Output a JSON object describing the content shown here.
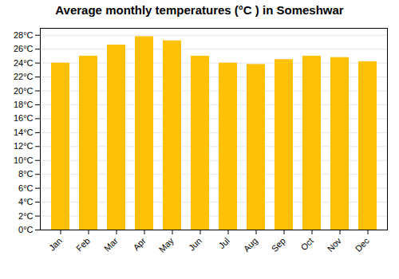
{
  "chart_data": {
    "type": "bar",
    "title": "Average monthly temperatures (°C ) in Someshwar",
    "categories": [
      "Jan",
      "Feb",
      "Mar",
      "Apr",
      "May",
      "Jun",
      "Jul",
      "Aug",
      "Sep",
      "Oct",
      "Nov",
      "Dec"
    ],
    "values": [
      24.0,
      25.0,
      26.6,
      27.8,
      27.2,
      25.0,
      24.0,
      23.8,
      24.5,
      25.0,
      24.8,
      24.2
    ],
    "color": "#FFC107",
    "ylim": [
      0,
      29
    ],
    "yticks": [
      {
        "value": 0,
        "label": "0°C"
      },
      {
        "value": 2,
        "label": "2°C"
      },
      {
        "value": 4,
        "label": "4°C"
      },
      {
        "value": 6,
        "label": "6°C"
      },
      {
        "value": 8,
        "label": "8°C"
      },
      {
        "value": 10,
        "label": "10°C"
      },
      {
        "value": 12,
        "label": "12°C"
      },
      {
        "value": 14,
        "label": "14°C"
      },
      {
        "value": 16,
        "label": "16°C"
      },
      {
        "value": 18,
        "label": "18°C"
      },
      {
        "value": 20,
        "label": "20°C"
      },
      {
        "value": 22,
        "label": "22°C"
      },
      {
        "value": 24,
        "label": "24°C"
      },
      {
        "value": 26,
        "label": "26°C"
      },
      {
        "value": 28,
        "label": "28°C"
      }
    ],
    "grid": true
  }
}
